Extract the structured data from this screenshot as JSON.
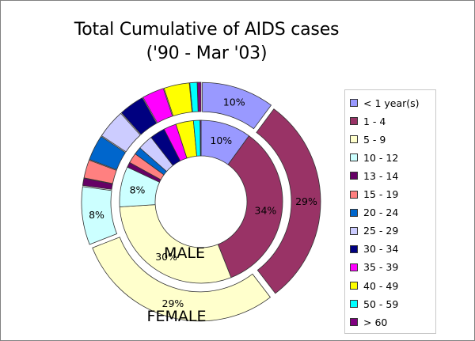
{
  "chart_data": {
    "type": "doughnut",
    "title": "Total Cumulative of AIDS cases",
    "subtitle": "('90 - Mar '03)",
    "categories": [
      "< 1 year(s)",
      "1 - 4",
      "5 - 9",
      "10 - 12",
      "13 - 14",
      "15 - 19",
      "20 - 24",
      "25 - 29",
      "30 - 34",
      "35 - 39",
      "40 - 49",
      "50 - 59",
      "> 60"
    ],
    "colors": [
      "#9999ff",
      "#993366",
      "#ffffcc",
      "#ccffff",
      "#660066",
      "#ff8080",
      "#0066cc",
      "#ccccff",
      "#000080",
      "#ff00ff",
      "#ffff00",
      "#00ffff",
      "#800080"
    ],
    "series": [
      {
        "name": "MALE",
        "ring": "inner",
        "values": [
          10,
          34,
          30,
          8,
          1,
          2,
          1.5,
          3,
          3,
          2.5,
          3.5,
          1.3,
          0.2
        ],
        "data_labels": [
          "10%",
          "34%",
          "30%",
          "8%",
          "",
          "",
          "",
          "",
          "",
          "",
          "",
          "",
          ""
        ]
      },
      {
        "name": "FEMALE",
        "ring": "outer",
        "values": [
          10,
          29,
          29,
          8,
          1,
          2.5,
          3.5,
          4,
          3.5,
          3,
          3.5,
          1,
          0.5
        ],
        "data_labels": [
          "10%",
          "29%",
          "29%",
          "8%",
          "",
          "",
          "",
          "",
          "",
          "",
          "",
          "",
          ""
        ]
      }
    ],
    "legend_position": "right",
    "start_angle_deg": 0,
    "direction": "clockwise"
  }
}
